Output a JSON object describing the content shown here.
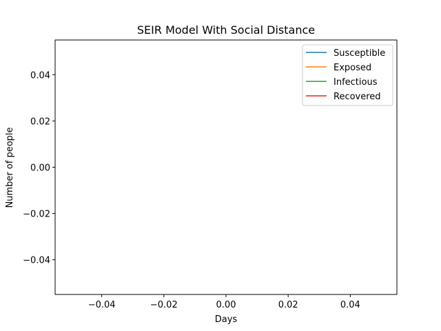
{
  "chart_data": {
    "type": "line",
    "title": "SEIR Model With Social Distance",
    "xlabel": "Days",
    "ylabel": "Number of people",
    "xlim": [
      -0.055,
      0.055
    ],
    "ylim": [
      -0.055,
      0.055
    ],
    "x_ticks": [
      -0.04,
      -0.02,
      0.0,
      0.02,
      0.04
    ],
    "y_ticks": [
      -0.04,
      -0.02,
      0.0,
      0.02,
      0.04
    ],
    "x_tick_labels": [
      "−0.04",
      "−0.02",
      "0.00",
      "0.02",
      "0.04"
    ],
    "y_tick_labels": [
      "−0.04",
      "−0.02",
      "0.00",
      "0.02",
      "0.04"
    ],
    "grid": false,
    "legend_position": "top-right",
    "series": [
      {
        "name": "Susceptible",
        "color": "#1f77b4",
        "x": [],
        "y": []
      },
      {
        "name": "Exposed",
        "color": "#ff7f0e",
        "x": [],
        "y": []
      },
      {
        "name": "Infectious",
        "color": "#2ca02c",
        "x": [],
        "y": []
      },
      {
        "name": "Recovered",
        "color": "#d62728",
        "x": [],
        "y": []
      }
    ]
  }
}
